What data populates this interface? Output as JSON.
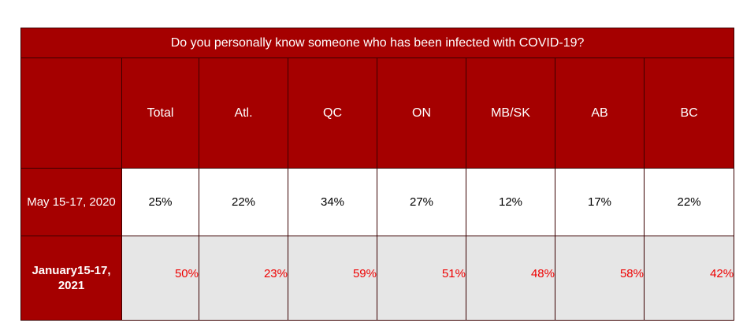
{
  "chart_data": {
    "type": "table",
    "title": "Do you personally know someone who has been infected with COVID-19?",
    "columns": [
      "Total",
      "Atl.",
      "QC",
      "ON",
      "MB/SK",
      "AB",
      "BC"
    ],
    "rows": [
      {
        "label": "May 15-17, 2020",
        "values": [
          "25%",
          "22%",
          "34%",
          "27%",
          "12%",
          "17%",
          "22%"
        ]
      },
      {
        "label_line1": "January15-17,",
        "label_line2": "2021",
        "values": [
          "50%",
          "23%",
          "59%",
          "51%",
          "48%",
          "58%",
          "42%"
        ]
      }
    ]
  },
  "colors": {
    "header_bg": "#a50000",
    "highlight_text": "#ee0000",
    "shaded_row": "#e6e6e6"
  }
}
